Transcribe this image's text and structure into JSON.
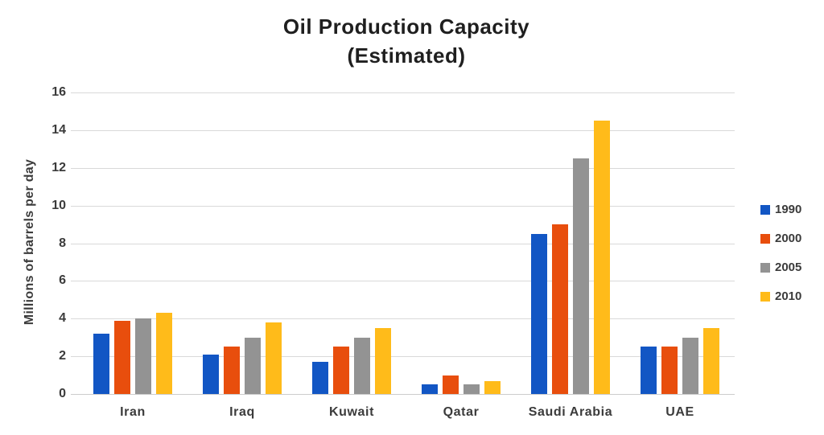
{
  "chart": {
    "title": "Oil Production Capacity",
    "subtitle": "(Estimated)",
    "ylabel": "Millions of barrels per day"
  },
  "chart_data": {
    "type": "bar",
    "title": "Oil Production Capacity (Estimated)",
    "xlabel": "",
    "ylabel": "Millions of barrels per day",
    "categories": [
      "Iran",
      "Iraq",
      "Kuwait",
      "Qatar",
      "Saudi Arabia",
      "UAE"
    ],
    "series": [
      {
        "name": "1990",
        "color": "#1256c4",
        "values": [
          3.2,
          2.1,
          1.7,
          0.5,
          8.5,
          2.5
        ]
      },
      {
        "name": "2000",
        "color": "#e84e0d",
        "values": [
          3.9,
          2.5,
          2.5,
          1.0,
          9.0,
          2.5
        ]
      },
      {
        "name": "2005",
        "color": "#939393",
        "values": [
          4.0,
          3.0,
          3.0,
          0.5,
          12.5,
          3.0
        ]
      },
      {
        "name": "2010",
        "color": "#ffbb1a",
        "values": [
          4.3,
          3.8,
          3.5,
          0.7,
          14.5,
          3.5
        ]
      }
    ],
    "ylim": [
      0,
      16
    ],
    "y_ticks": [
      0,
      2,
      4,
      6,
      8,
      10,
      12,
      14,
      16
    ],
    "grid": "horizontal-major",
    "gridline_color": "#d9d9d9",
    "legend_position": "right",
    "background_color": "#ffffff"
  }
}
